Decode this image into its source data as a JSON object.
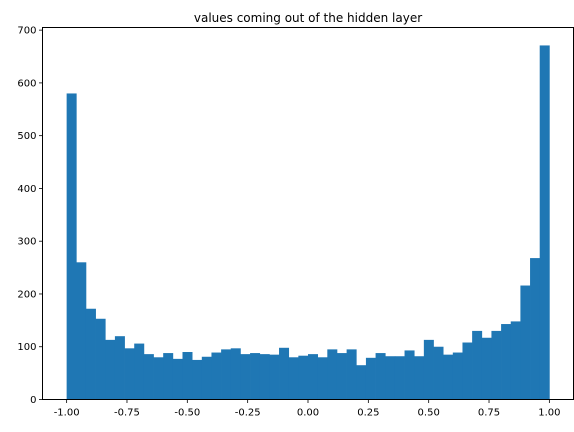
{
  "chart_data": {
    "type": "bar",
    "title": "values coming out of the hidden layer",
    "xlabel": "",
    "ylabel": "",
    "bin_range": [
      -1.0,
      1.0
    ],
    "bin_count": 50,
    "values": [
      580,
      260,
      172,
      153,
      113,
      120,
      97,
      106,
      86,
      80,
      88,
      77,
      90,
      75,
      81,
      89,
      95,
      97,
      86,
      88,
      86,
      85,
      98,
      80,
      83,
      86,
      80,
      95,
      88,
      95,
      65,
      79,
      88,
      82,
      82,
      93,
      82,
      113,
      100,
      85,
      89,
      108,
      130,
      117,
      130,
      143,
      148,
      216,
      268,
      671
    ],
    "xlim": [
      -1.1,
      1.1
    ],
    "ylim": [
      0,
      705
    ],
    "x_ticks": [
      "-1.00",
      "-0.75",
      "-0.50",
      "-0.25",
      "0.00",
      "0.25",
      "0.50",
      "0.75",
      "1.00"
    ],
    "x_tick_values": [
      -1.0,
      -0.75,
      -0.5,
      -0.25,
      0.0,
      0.25,
      0.5,
      0.75,
      1.0
    ],
    "y_ticks": [
      "0",
      "100",
      "200",
      "300",
      "400",
      "500",
      "600",
      "700"
    ],
    "y_tick_values": [
      0,
      100,
      200,
      300,
      400,
      500,
      600,
      700
    ],
    "bar_color": "#1f77b4",
    "grid": false,
    "legend": "none"
  }
}
